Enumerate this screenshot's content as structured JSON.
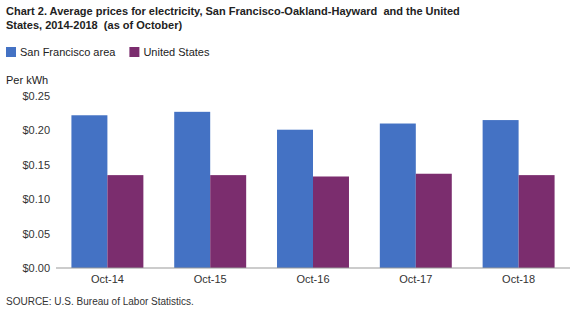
{
  "chart_data": {
    "type": "bar",
    "title": "Chart 2. Average prices for electricity, San Francisco-Oakland-Hayward  and the United\nStates, 2014-2018  (as of October)",
    "y_label": "Per kWh",
    "source": "SOURCE: U.S. Bureau of Labor Statistics.",
    "categories": [
      "Oct-14",
      "Oct-15",
      "Oct-16",
      "Oct-17",
      "Oct-18"
    ],
    "series": [
      {
        "name": "San Francisco area",
        "color": "#4472C4",
        "values": [
          0.222,
          0.227,
          0.201,
          0.21,
          0.215
        ]
      },
      {
        "name": "United States",
        "color": "#7B2D6E",
        "values": [
          0.135,
          0.135,
          0.133,
          0.137,
          0.135
        ]
      }
    ],
    "ylim": [
      0.0,
      0.25
    ],
    "yticks": [
      {
        "value": 0.0,
        "label": "$0.00"
      },
      {
        "value": 0.05,
        "label": "$0.05"
      },
      {
        "value": 0.1,
        "label": "$0.10"
      },
      {
        "value": 0.15,
        "label": "$0.15"
      },
      {
        "value": 0.2,
        "label": "$0.20"
      },
      {
        "value": 0.25,
        "label": "$0.25"
      }
    ],
    "grid": false,
    "legend": "upper left"
  }
}
